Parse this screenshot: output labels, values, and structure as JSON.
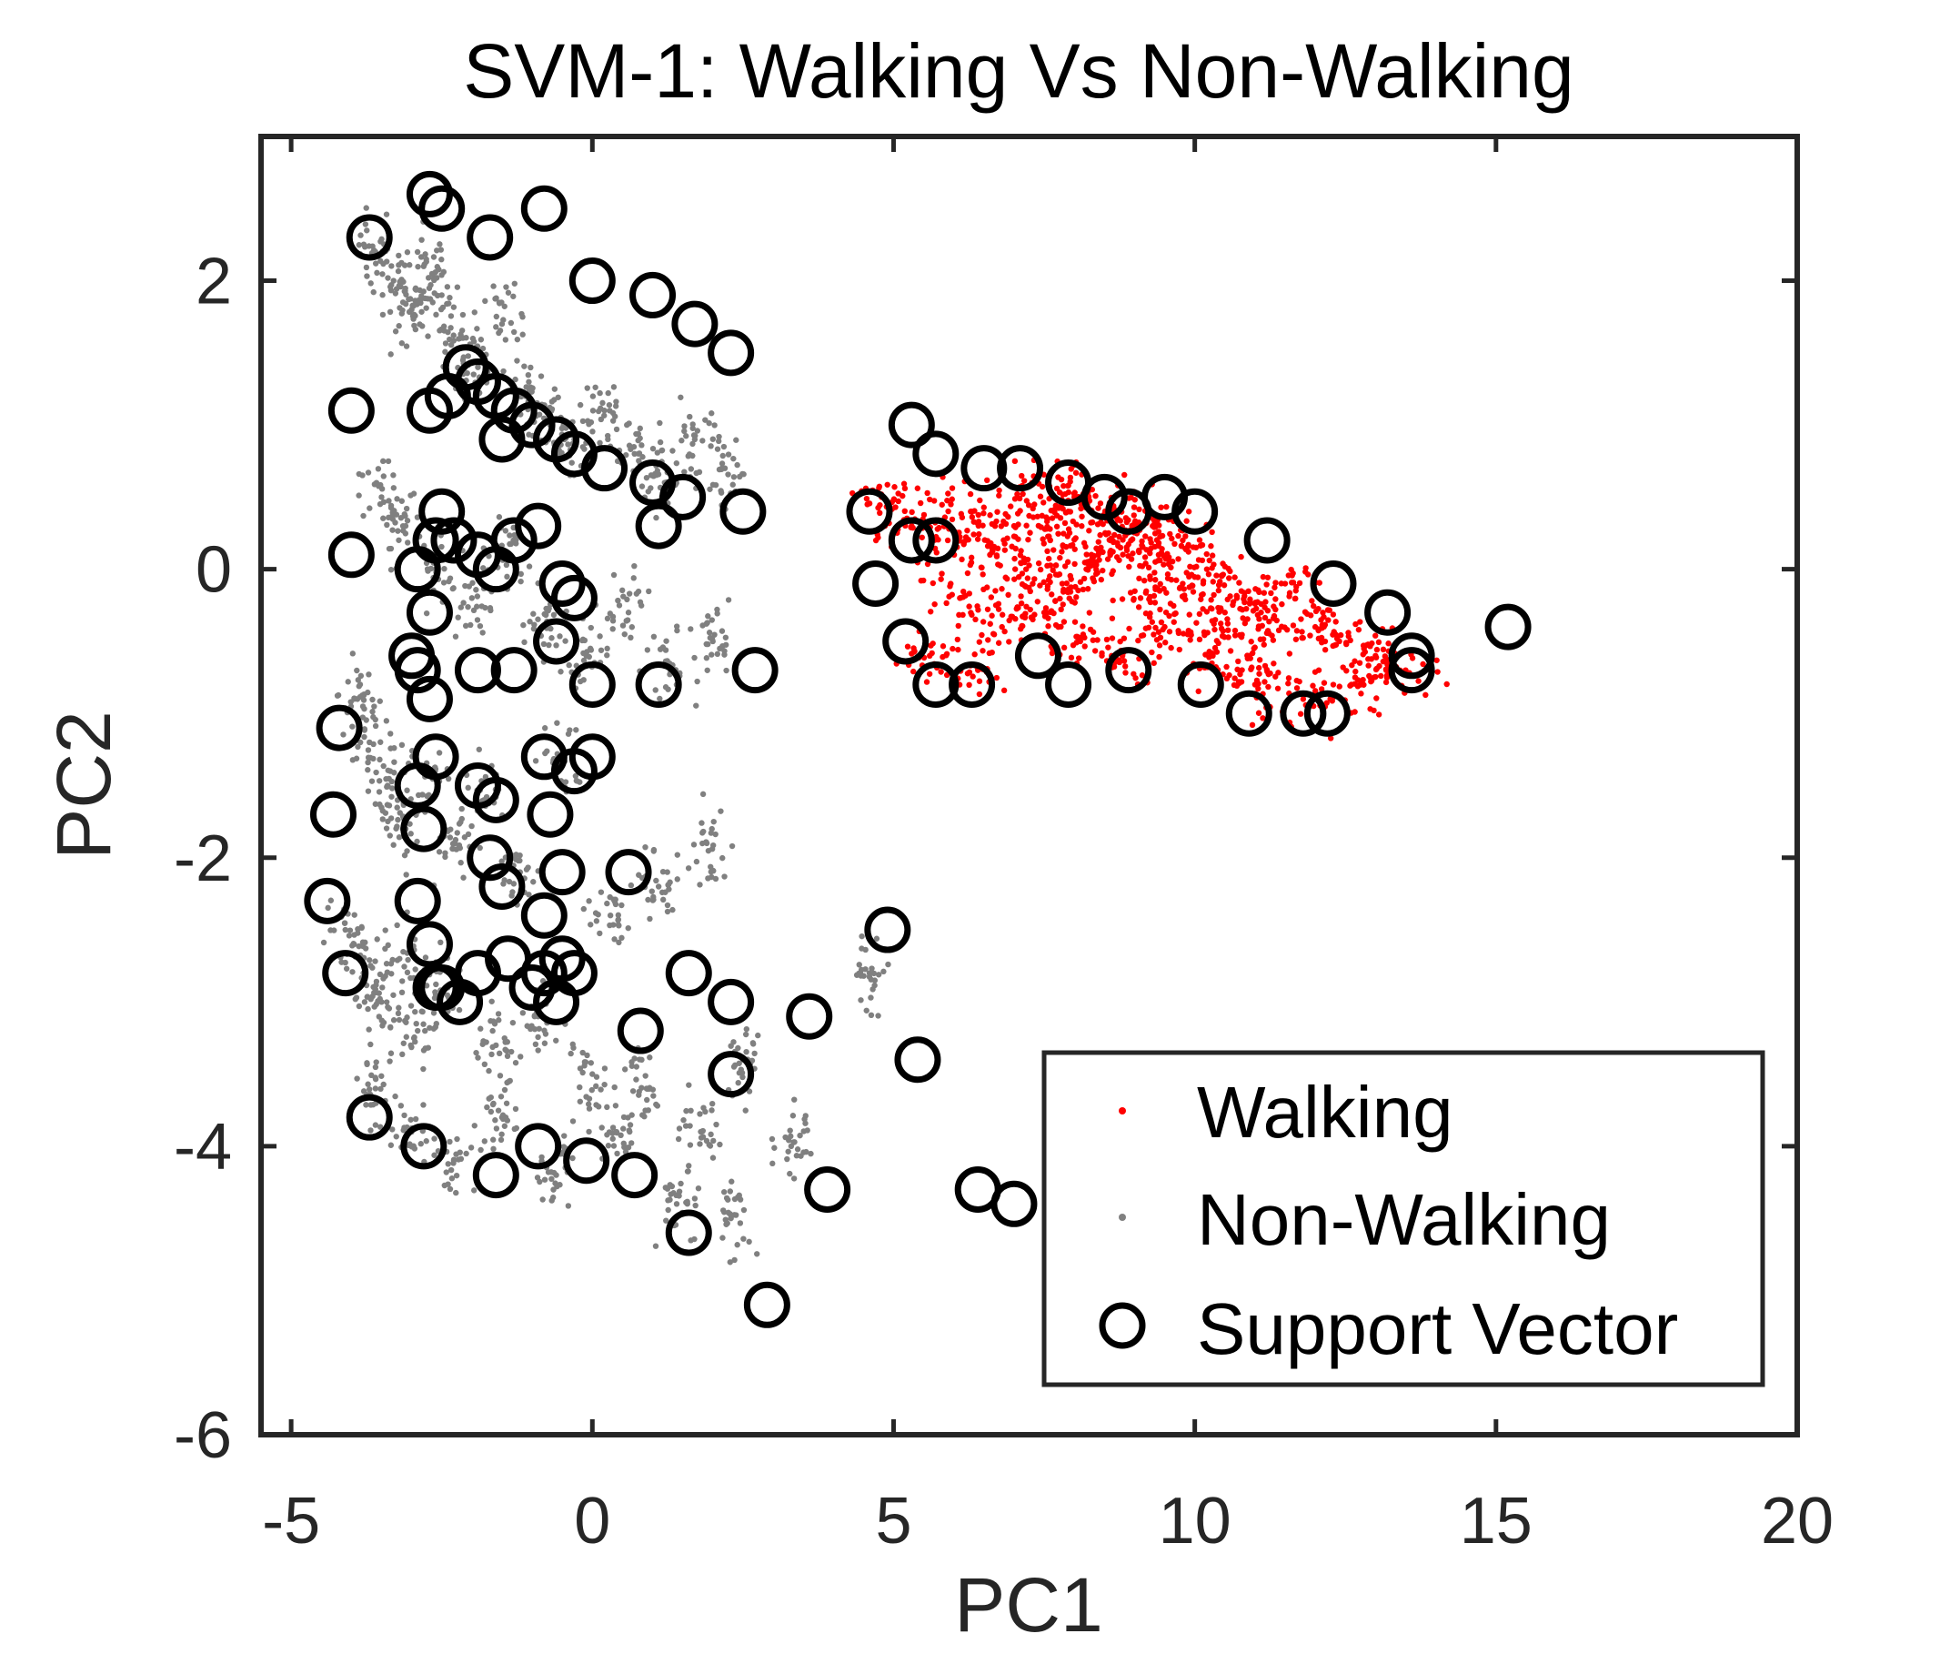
{
  "chart_data": {
    "type": "scatter",
    "title": "SVM-1: Walking Vs Non-Walking",
    "xlabel": "PC1",
    "ylabel": "PC2",
    "xlim": [
      -5.5,
      20
    ],
    "ylim": [
      -6,
      3
    ],
    "xticks": [
      "-5",
      "0",
      "5",
      "10",
      "15",
      "20"
    ],
    "yticks": [
      "-6",
      "-4",
      "-2",
      "0",
      "2"
    ],
    "legend": {
      "placement": "bottom-right",
      "entries": [
        "Walking",
        "Non-Walking",
        "Support Vector"
      ]
    },
    "colors": {
      "walking": "#ff0000",
      "non_walking": "#808080",
      "support_vector": "#000000",
      "axes": "#262626"
    },
    "series": [
      {
        "name": "Walking",
        "marker": "dot",
        "color": "#ff0000",
        "points_density_note": "dense cloud",
        "x": [
          4.8,
          5.3,
          5.9,
          6.3,
          6.6,
          7.0,
          7.3,
          7.6,
          7.9,
          8.2,
          8.6,
          9.0,
          9.4,
          9.8,
          10.2,
          10.7,
          11.1,
          11.5,
          12.0,
          12.4,
          13.0,
          13.5,
          6.1,
          6.8,
          7.5,
          8.1,
          8.8,
          9.5,
          10.3,
          11.0,
          7.2,
          7.8,
          8.4,
          9.1,
          9.8,
          10.5,
          5.6,
          6.4,
          8.0,
          8.6,
          9.3,
          10.9,
          11.8,
          12.6
        ],
        "y": [
          0.5,
          0.3,
          0.2,
          0.4,
          0.1,
          0.3,
          0.6,
          0.2,
          0.4,
          0.0,
          0.2,
          0.3,
          0.1,
          -0.1,
          0.0,
          -0.2,
          -0.3,
          -0.1,
          -0.4,
          -0.5,
          -0.6,
          -0.7,
          -0.2,
          -0.4,
          -0.3,
          -0.5,
          -0.6,
          -0.4,
          -0.6,
          -0.8,
          0.0,
          -0.1,
          0.1,
          -0.2,
          0.2,
          -0.3,
          -0.6,
          -0.7,
          0.5,
          0.4,
          0.3,
          -0.6,
          -0.9,
          -0.8
        ]
      },
      {
        "name": "Non-Walking",
        "marker": "dot",
        "color": "#808080",
        "points_density_note": "dense cloud",
        "x": [
          -3.6,
          -3.3,
          -3.0,
          -2.8,
          -2.5,
          -2.2,
          -1.9,
          -1.5,
          -1.1,
          -0.7,
          -0.3,
          0.2,
          0.7,
          1.2,
          1.7,
          2.2,
          -3.5,
          -3.1,
          -2.6,
          -2.0,
          -1.4,
          -0.8,
          -0.1,
          0.6,
          1.3,
          2.0,
          -3.9,
          -3.7,
          -3.4,
          -3.1,
          -2.7,
          -2.3,
          -1.8,
          -1.2,
          -0.5,
          0.3,
          1.1,
          1.9,
          -4.1,
          -3.8,
          -3.5,
          -3.2,
          -2.9,
          -2.4,
          -1.6,
          -0.9,
          0.0,
          0.9,
          1.8,
          2.5,
          3.3,
          4.6,
          -3.6,
          -3.0,
          -2.3,
          -1.5,
          -0.6,
          0.4,
          1.4,
          2.3
        ],
        "y": [
          2.2,
          2.0,
          1.8,
          2.1,
          1.9,
          1.6,
          1.4,
          1.7,
          1.2,
          1.0,
          0.9,
          1.1,
          0.8,
          0.6,
          0.9,
          0.7,
          0.5,
          0.3,
          0.0,
          -0.2,
          0.1,
          -0.4,
          -0.6,
          -0.3,
          -0.7,
          -0.5,
          -0.9,
          -1.2,
          -1.5,
          -1.8,
          -1.4,
          -1.9,
          -1.6,
          -2.1,
          -1.3,
          -2.4,
          -2.2,
          -1.9,
          -2.5,
          -2.8,
          -3.0,
          -2.7,
          -3.2,
          -2.9,
          -3.3,
          -3.1,
          -3.5,
          -3.6,
          -3.9,
          -3.4,
          -4.0,
          -2.8,
          -3.6,
          -3.9,
          -4.1,
          -3.8,
          -4.2,
          -3.9,
          -4.4,
          -4.5
        ]
      },
      {
        "name": "Support Vector",
        "marker": "circle",
        "color": "#000000",
        "x": [
          -3.7,
          -2.7,
          -2.5,
          -1.7,
          -0.8,
          0.0,
          1.0,
          1.7,
          2.3,
          -4.0,
          -2.7,
          -2.4,
          -2.1,
          -1.9,
          -1.6,
          -1.3,
          -1.0,
          -0.6,
          -0.3,
          0.2,
          -1.5,
          1.0,
          1.5,
          2.5,
          -4.0,
          -2.9,
          -2.6,
          -2.5,
          -2.7,
          -2.3,
          -1.9,
          -1.6,
          -1.3,
          -0.9,
          -0.5,
          -0.3,
          1.1,
          -3.0,
          -2.7,
          -2.9,
          -1.9,
          -1.3,
          -0.6,
          0.0,
          1.1,
          2.7,
          -4.2,
          -4.3,
          -4.4,
          -4.1,
          -2.9,
          -2.8,
          -2.6,
          -2.9,
          -2.7,
          -2.6,
          -1.9,
          -1.7,
          -1.5,
          -1.6,
          -0.8,
          -0.7,
          -0.3,
          0.0,
          -0.8,
          -0.5,
          -0.8,
          -0.6,
          0.6,
          -2.5,
          -2.2,
          -1.9,
          -1.4,
          -1.0,
          -0.5,
          -0.3,
          1.6,
          0.8,
          2.3,
          2.3,
          3.6,
          -3.7,
          -2.8,
          -1.6,
          -0.9,
          -0.1,
          0.7,
          1.6,
          2.9,
          3.9,
          4.9,
          5.4,
          6.4,
          7.0,
          5.3,
          5.7,
          6.5,
          7.1,
          7.9,
          8.5,
          8.9,
          9.5,
          10.0,
          11.2,
          12.3,
          13.2,
          13.6,
          15.2,
          4.6,
          4.7,
          5.3,
          5.7,
          5.2,
          5.7,
          6.3,
          7.4,
          7.9,
          8.9,
          10.1,
          10.9,
          11.8,
          12.2,
          13.6
        ],
        "y": [
          2.3,
          2.6,
          2.5,
          2.3,
          2.5,
          2.0,
          1.9,
          1.7,
          1.5,
          1.1,
          1.1,
          1.2,
          1.4,
          1.3,
          1.2,
          1.1,
          1.0,
          0.9,
          0.8,
          0.7,
          0.9,
          0.6,
          0.5,
          0.4,
          0.1,
          0.0,
          0.2,
          0.4,
          -0.3,
          0.2,
          0.1,
          0.0,
          0.2,
          0.3,
          -0.1,
          -0.2,
          0.3,
          -0.6,
          -0.9,
          -0.7,
          -0.7,
          -0.7,
          -0.5,
          -0.8,
          -0.8,
          -0.7,
          -1.1,
          -1.7,
          -2.3,
          -2.8,
          -1.5,
          -1.8,
          -1.3,
          -2.3,
          -2.6,
          -2.9,
          -1.5,
          -2.0,
          -2.2,
          -1.6,
          -1.3,
          -1.7,
          -1.4,
          -1.3,
          -2.4,
          -2.1,
          -2.8,
          -3.0,
          -2.1,
          -2.9,
          -3.0,
          -2.8,
          -2.7,
          -2.9,
          -2.7,
          -2.8,
          -2.8,
          -3.2,
          -3.0,
          -3.5,
          -3.1,
          -3.8,
          -4.0,
          -4.2,
          -4.0,
          -4.1,
          -4.2,
          -4.6,
          -5.1,
          -4.3,
          -2.5,
          -3.4,
          -4.3,
          -4.4,
          1.0,
          0.8,
          0.7,
          0.7,
          0.6,
          0.5,
          0.4,
          0.5,
          0.4,
          0.2,
          -0.1,
          -0.3,
          -0.6,
          -0.4,
          0.4,
          -0.1,
          0.2,
          0.2,
          -0.5,
          -0.8,
          -0.8,
          -0.6,
          -0.8,
          -0.7,
          -0.8,
          -1.0,
          -1.0,
          -1.0,
          -0.7
        ]
      }
    ]
  }
}
